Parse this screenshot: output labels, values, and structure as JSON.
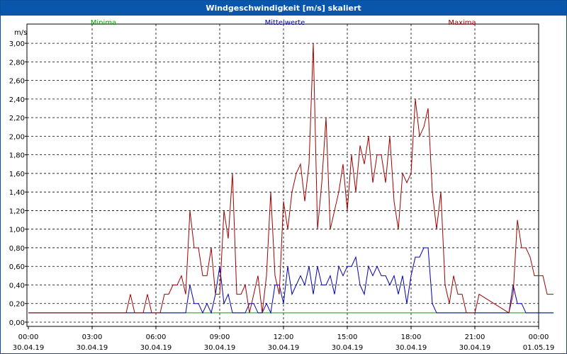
{
  "window": {
    "title": "Windgeschwindigkeit [m/s] skaliert"
  },
  "colors": {
    "min": "#00a000",
    "mean": "#0000b4",
    "max": "#a00000",
    "title_bg": "#0a56ad"
  },
  "chart_data": {
    "type": "line",
    "ylabel": "m/s",
    "ylim": [
      0,
      3.1
    ],
    "yticks": [
      "0,00",
      "0,20",
      "0,40",
      "0,60",
      "0,80",
      "1,00",
      "1,20",
      "1,40",
      "1,60",
      "1,80",
      "2,00",
      "2,20",
      "2,40",
      "2,60",
      "2,80",
      "3,00"
    ],
    "xticks": [
      {
        "time": "00:00",
        "date": "30.04.19"
      },
      {
        "time": "03:00",
        "date": "30.04.19"
      },
      {
        "time": "06:00",
        "date": "30.04.19"
      },
      {
        "time": "09:00",
        "date": "30.04.19"
      },
      {
        "time": "12:00",
        "date": "30.04.19"
      },
      {
        "time": "15:00",
        "date": "30.04.19"
      },
      {
        "time": "18:00",
        "date": "30.04.19"
      },
      {
        "time": "21:00",
        "date": "30.04.19"
      },
      {
        "time": "00:00",
        "date": "01.05.19"
      }
    ],
    "x_hours_range": [
      0,
      24
    ],
    "grid": true,
    "legend": [
      "Minima",
      "Mittelwerte",
      "Maxima"
    ],
    "series": [
      {
        "name": "Minima",
        "x": [
          0,
          24.7
        ],
        "values": [
          0.1,
          0.1
        ]
      },
      {
        "name": "Mittelwerte",
        "x": [
          0,
          7.4,
          7.6,
          7.8,
          8.0,
          8.2,
          8.4,
          8.6,
          8.8,
          9.0,
          9.2,
          9.4,
          9.6,
          9.8,
          10.0,
          10.2,
          10.4,
          10.6,
          10.8,
          11.0,
          11.2,
          11.4,
          11.6,
          11.8,
          12.0,
          12.2,
          12.4,
          12.6,
          12.8,
          13.0,
          13.2,
          13.4,
          13.6,
          13.8,
          14.0,
          14.2,
          14.4,
          14.6,
          14.8,
          15.0,
          15.2,
          15.4,
          15.6,
          15.8,
          16.0,
          16.2,
          16.4,
          16.6,
          16.8,
          17.0,
          17.2,
          17.4,
          17.6,
          17.8,
          18.0,
          18.2,
          18.4,
          18.6,
          18.8,
          19.0,
          19.2,
          22.6,
          22.8,
          23.0,
          23.2,
          23.4,
          23.6,
          24.7
        ],
        "values": [
          0.1,
          0.1,
          0.4,
          0.2,
          0.2,
          0.1,
          0.2,
          0.1,
          0.3,
          0.6,
          0.2,
          0.3,
          0.1,
          0.1,
          0.1,
          0.1,
          0.2,
          0.2,
          0.1,
          0.1,
          0.2,
          0.1,
          0.4,
          0.4,
          0.2,
          0.6,
          0.3,
          0.4,
          0.5,
          0.4,
          0.6,
          0.3,
          0.6,
          0.4,
          0.4,
          0.5,
          0.3,
          0.6,
          0.5,
          0.6,
          0.6,
          0.7,
          0.4,
          0.3,
          0.6,
          0.5,
          0.6,
          0.5,
          0.5,
          0.4,
          0.5,
          0.3,
          0.5,
          0.2,
          0.5,
          0.7,
          0.7,
          0.8,
          0.8,
          0.2,
          0.1,
          0.1,
          0.4,
          0.2,
          0.2,
          0.1,
          0.1,
          0.1
        ]
      },
      {
        "name": "Maxima",
        "x": [
          0,
          4.6,
          4.8,
          5.0,
          5.4,
          5.6,
          5.8,
          6.0,
          6.2,
          6.4,
          6.6,
          6.8,
          7.0,
          7.2,
          7.4,
          7.6,
          7.8,
          8.0,
          8.2,
          8.4,
          8.6,
          8.8,
          9.0,
          9.2,
          9.4,
          9.6,
          9.8,
          10.0,
          10.2,
          10.4,
          10.6,
          10.8,
          11.0,
          11.2,
          11.4,
          11.6,
          11.8,
          12.0,
          12.2,
          12.4,
          12.6,
          12.8,
          13.0,
          13.2,
          13.4,
          13.6,
          13.8,
          14.0,
          14.2,
          14.4,
          14.6,
          14.8,
          15.0,
          15.2,
          15.4,
          15.6,
          15.8,
          16.0,
          16.2,
          16.4,
          16.6,
          16.8,
          17.0,
          17.2,
          17.4,
          17.6,
          17.8,
          18.0,
          18.2,
          18.4,
          18.6,
          18.8,
          19.0,
          19.2,
          19.4,
          19.6,
          19.8,
          20.0,
          20.2,
          20.4,
          20.6,
          20.8,
          21.0,
          21.2,
          22.6,
          22.8,
          23.0,
          23.2,
          23.4,
          23.6,
          23.8,
          24.0,
          24.2,
          24.4,
          24.6,
          24.7
        ],
        "values": [
          0.1,
          0.1,
          0.3,
          0.1,
          0.1,
          0.3,
          0.1,
          0.1,
          0.1,
          0.3,
          0.3,
          0.4,
          0.4,
          0.5,
          0.3,
          1.2,
          0.8,
          0.8,
          0.5,
          0.5,
          0.8,
          0.3,
          0.3,
          1.2,
          0.9,
          1.6,
          0.3,
          0.3,
          0.4,
          0.1,
          0.3,
          0.5,
          0.1,
          0.5,
          1.4,
          0.5,
          0.3,
          1.3,
          1.0,
          1.4,
          1.6,
          1.7,
          1.3,
          1.7,
          3.0,
          1.0,
          1.5,
          2.2,
          1.0,
          1.2,
          1.4,
          1.7,
          1.2,
          1.8,
          1.4,
          1.9,
          1.7,
          2.0,
          1.5,
          1.8,
          1.8,
          1.5,
          2.0,
          1.3,
          1.0,
          1.6,
          1.5,
          1.6,
          2.4,
          2.0,
          2.1,
          2.3,
          1.4,
          1.0,
          1.4,
          0.4,
          0.2,
          0.5,
          0.3,
          0.3,
          0.1,
          0.1,
          0.1,
          0.3,
          0.1,
          0.3,
          1.1,
          0.8,
          0.8,
          0.7,
          0.5,
          0.5,
          0.5,
          0.3,
          0.3,
          0.3
        ]
      }
    ]
  }
}
